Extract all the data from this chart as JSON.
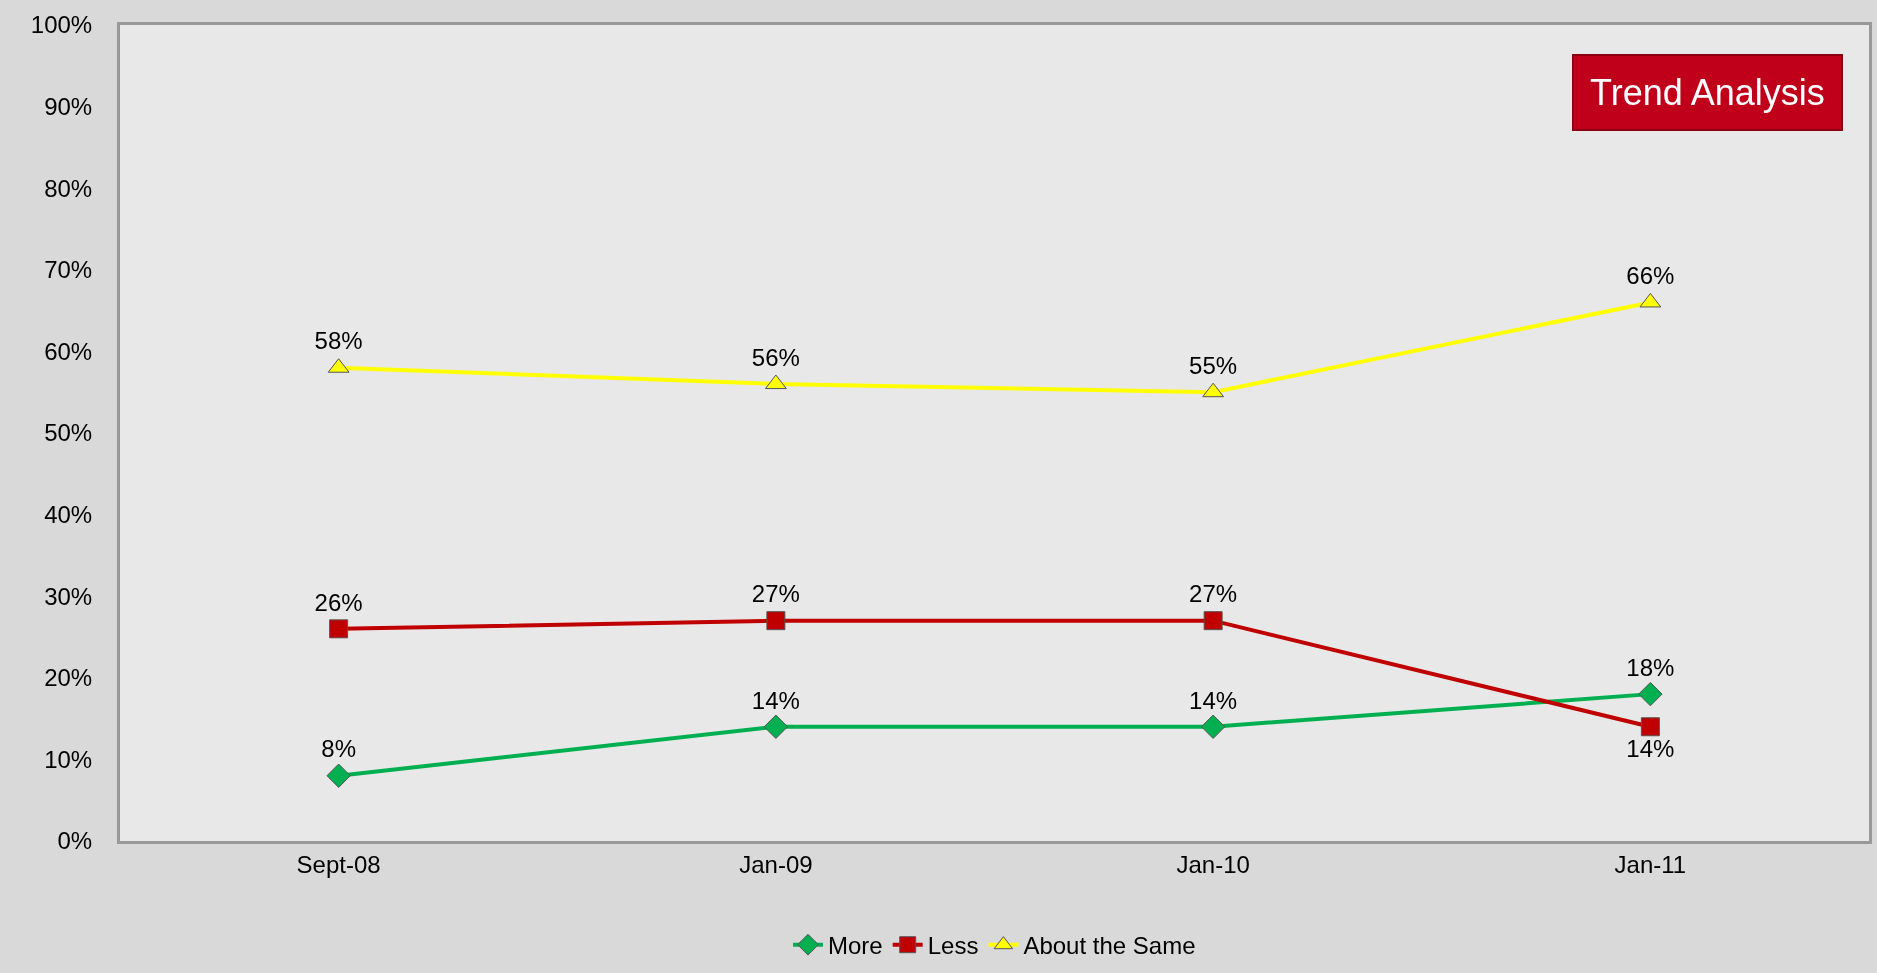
{
  "chart_data": {
    "type": "line",
    "title": "Trend Analysis",
    "categories": [
      "Sept-08",
      "Jan-09",
      "Jan-10",
      "Jan-11"
    ],
    "series": [
      {
        "name": "More",
        "color": "#00b050",
        "marker": "diamond",
        "values": [
          8,
          14,
          14,
          18
        ],
        "value_labels": [
          "8%",
          "14%",
          "14%",
          "18%"
        ]
      },
      {
        "name": "Less",
        "color": "#c00000",
        "marker": "square",
        "values": [
          26,
          27,
          27,
          14
        ],
        "value_labels": [
          "26%",
          "27%",
          "27%",
          "14%"
        ]
      },
      {
        "name": "About the Same",
        "color": "#ffff00",
        "marker": "triangle",
        "values": [
          58,
          56,
          55,
          66
        ],
        "value_labels": [
          "58%",
          "56%",
          "55%",
          "66%"
        ]
      }
    ],
    "ylim": [
      0,
      100
    ],
    "yticks": [
      {
        "value": 0,
        "label": "0%"
      },
      {
        "value": 10,
        "label": "10%"
      },
      {
        "value": 20,
        "label": "20%"
      },
      {
        "value": 30,
        "label": "30%"
      },
      {
        "value": 40,
        "label": "40%"
      },
      {
        "value": 50,
        "label": "50%"
      },
      {
        "value": 60,
        "label": "60%"
      },
      {
        "value": 70,
        "label": "70%"
      },
      {
        "value": 80,
        "label": "80%"
      },
      {
        "value": 90,
        "label": "90%"
      },
      {
        "value": 100,
        "label": "100%"
      }
    ],
    "grid": false,
    "legend": "bottom",
    "line_style": "solid"
  }
}
